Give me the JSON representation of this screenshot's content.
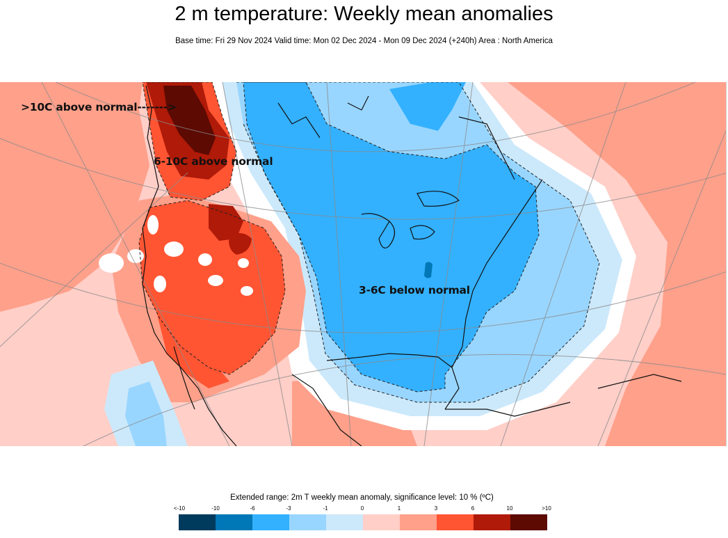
{
  "title": "2 m temperature: Weekly mean anomalies",
  "subtitle": "Base time: Fri 29 Nov 2024 Valid time: Mon 02 Dec 2024 - Mon 09 Dec 2024 (+240h) Area : North America",
  "annotations": {
    "above10": ">10C above normal------->",
    "above6to10": "6-10C above normal",
    "below3to6": "3-6C below normal"
  },
  "legend": {
    "title": "Extended range: 2m T weekly mean anomaly, significance level: 10 % (ºC)",
    "ticks": [
      "<-10",
      "-10",
      "-6",
      "-3",
      "-1",
      "0",
      "1",
      "3",
      "6",
      "10",
      ">10"
    ],
    "colors": [
      "#003a5c",
      "#0077b6",
      "#33b1ff",
      "#99d6ff",
      "#cce9fb",
      "#ffcfc8",
      "#ffa08a",
      "#ff5533",
      "#b01a08",
      "#5c0a02"
    ]
  }
}
